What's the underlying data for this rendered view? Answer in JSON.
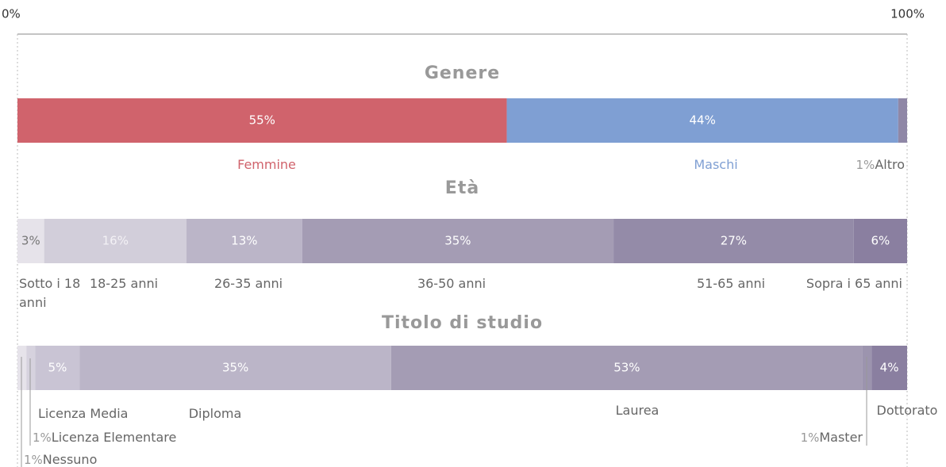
{
  "chart_data": {
    "type": "bar",
    "xlim": [
      0,
      100
    ],
    "xticks": [
      {
        "value": 0,
        "label": "0%"
      },
      {
        "value": 100,
        "label": "100%"
      }
    ],
    "groups": [
      {
        "title": "Genere",
        "categories": [
          "Femmine",
          "Maschi",
          "Altro"
        ],
        "values": [
          55,
          44,
          1
        ],
        "value_labels": [
          "55%",
          "44%",
          "1%"
        ],
        "colors": [
          "#d0636c",
          "#7f9fd3",
          "#8f87a6"
        ]
      },
      {
        "title": "Età",
        "categories": [
          "Sotto i 18 anni",
          "18-25 anni",
          "26-35 anni",
          "36-50 anni",
          "51-65 anni",
          "Sopra i 65 anni"
        ],
        "values": [
          3,
          16,
          13,
          35,
          27,
          6
        ],
        "value_labels": [
          "3%",
          "16%",
          "13%",
          "35%",
          "27%",
          "6%"
        ],
        "colors": [
          "#e6e3ea",
          "#d2ceda",
          "#bbb5c8",
          "#a49cb4",
          "#948ba8",
          "#8a7fa0"
        ]
      },
      {
        "title": "Titolo di studio",
        "categories": [
          "Nessuno",
          "Licenza Elementare",
          "Licenza Media",
          "Diploma",
          "Laurea",
          "Master",
          "Dottorato"
        ],
        "values": [
          1,
          1,
          5,
          35,
          53,
          1,
          4
        ],
        "value_labels": [
          "1%",
          "1%",
          "5%",
          "35%",
          "53%",
          "1%",
          "4%"
        ],
        "colors": [
          "#e6e3ea",
          "#d6d2de",
          "#c9c4d4",
          "#bbb5c8",
          "#a49cb4",
          "#9c94ae",
          "#8a7fa0"
        ]
      }
    ]
  }
}
